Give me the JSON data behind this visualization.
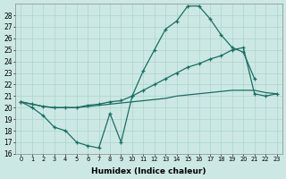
{
  "bg_color": "#cce8e4",
  "grid_color": "#aad4cc",
  "line_color": "#1a6e64",
  "xlabel": "Humidex (Indice chaleur)",
  "xlim": [
    -0.5,
    23.5
  ],
  "ylim": [
    16,
    29
  ],
  "yticks": [
    16,
    17,
    18,
    19,
    20,
    21,
    22,
    23,
    24,
    25,
    26,
    27,
    28
  ],
  "xticks": [
    0,
    1,
    2,
    3,
    4,
    5,
    6,
    7,
    8,
    9,
    10,
    11,
    12,
    13,
    14,
    15,
    16,
    17,
    18,
    19,
    20,
    21,
    22,
    23
  ],
  "curve1_x": [
    0,
    1,
    2,
    3,
    4,
    5,
    6,
    7,
    8,
    9,
    10,
    11,
    12,
    13,
    14,
    15,
    16,
    17,
    18,
    19,
    20,
    21
  ],
  "curve1_y": [
    20.5,
    20.0,
    19.3,
    18.3,
    18.0,
    17.0,
    16.7,
    16.5,
    19.5,
    17.0,
    21.0,
    23.2,
    25.0,
    26.8,
    27.5,
    28.8,
    28.8,
    27.7,
    26.3,
    25.2,
    24.8,
    22.5
  ],
  "curve2_x": [
    0,
    1,
    2,
    3,
    4,
    5,
    6,
    7,
    8,
    9,
    10,
    11,
    12,
    13,
    14,
    15,
    16,
    17,
    18,
    19,
    20,
    21,
    22,
    23
  ],
  "curve2_y": [
    20.5,
    20.3,
    20.1,
    20.0,
    20.0,
    20.0,
    20.2,
    20.3,
    20.5,
    20.6,
    21.0,
    21.5,
    22.0,
    22.5,
    23.0,
    23.5,
    23.8,
    24.2,
    24.5,
    25.0,
    25.2,
    21.2,
    21.0,
    21.2
  ],
  "curve3_x": [
    0,
    1,
    2,
    3,
    4,
    5,
    6,
    7,
    8,
    9,
    10,
    11,
    12,
    13,
    14,
    15,
    16,
    17,
    18,
    19,
    20,
    21,
    22,
    23
  ],
  "curve3_y": [
    20.5,
    20.3,
    20.1,
    20.0,
    20.0,
    20.0,
    20.1,
    20.2,
    20.3,
    20.4,
    20.5,
    20.6,
    20.7,
    20.8,
    21.0,
    21.1,
    21.2,
    21.3,
    21.4,
    21.5,
    21.5,
    21.5,
    21.3,
    21.2
  ]
}
